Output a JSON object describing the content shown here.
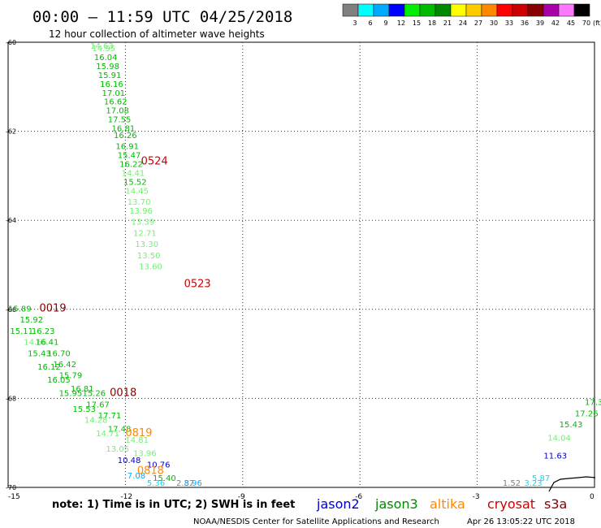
{
  "title": "00:00 — 11:59 UTC 04/25/2018",
  "subtitle": "12 hour collection of altimeter wave heights",
  "legend": {
    "values": [
      "3",
      "6",
      "9",
      "12",
      "15",
      "18",
      "21",
      "24",
      "27",
      "30",
      "33",
      "36",
      "39",
      "42",
      "45",
      "70"
    ],
    "unit": "(ft)",
    "colors": [
      "#808080",
      "#00ffff",
      "#00aaff",
      "#0000ff",
      "#00ee00",
      "#00bb00",
      "#008800",
      "#ffff00",
      "#ffcc00",
      "#ff8800",
      "#ff0000",
      "#cc0000",
      "#880000",
      "#aa00aa",
      "#ff77ff",
      "#000000"
    ]
  },
  "note": "note: 1) Time is in UTC; 2) SWH is in feet",
  "footer": "NOAA/NESDIS Center for Satellite Applications and Research",
  "timestamp": "Apr 26 13:05:22 UTC 2018",
  "chart_data": {
    "type": "scatter",
    "xlim": [
      -15,
      0
    ],
    "ylim": [
      -70,
      -60
    ],
    "x_ticks": [
      "-15",
      "-12",
      "-9",
      "-6",
      "-3",
      "0"
    ],
    "y_ticks": [
      "-60",
      "-62",
      "-64",
      "-66",
      "-68",
      "-70"
    ],
    "grid": true,
    "satellites": [
      {
        "name": "jason2",
        "color": "#0000cc"
      },
      {
        "name": "jason3",
        "color": "#008800"
      },
      {
        "name": "altika",
        "color": "#ff8800"
      },
      {
        "name": "cryosat",
        "color": "#cc0000"
      },
      {
        "name": "s3a",
        "color": "#880000"
      }
    ],
    "time_labels": [
      {
        "text": "0524",
        "x": -11.6,
        "y": -62.75,
        "color": "#cc0000"
      },
      {
        "text": "0523",
        "x": -10.5,
        "y": -65.5,
        "color": "#cc0000"
      },
      {
        "text": "0019",
        "x": -14.2,
        "y": -66.05,
        "color": "#880000"
      },
      {
        "text": "0018",
        "x": -12.4,
        "y": -67.95,
        "color": "#880000"
      },
      {
        "text": "0819",
        "x": -12.0,
        "y": -68.85,
        "color": "#ff8800"
      },
      {
        "text": "0818",
        "x": -11.7,
        "y": -69.7,
        "color": "#ff8800"
      }
    ],
    "points": [
      {
        "v": "14.63",
        "x": -12.9,
        "y": -60.05,
        "c": "#77ee77"
      },
      {
        "v": "14.95",
        "x": -12.85,
        "y": -60.2,
        "c": "#77ee77"
      },
      {
        "v": "16.04",
        "x": -12.8,
        "y": -60.4,
        "c": "#00bb00"
      },
      {
        "v": "15.98",
        "x": -12.75,
        "y": -60.6,
        "c": "#00bb00"
      },
      {
        "v": "15.91",
        "x": -12.7,
        "y": -60.8,
        "c": "#00bb00"
      },
      {
        "v": "16.16",
        "x": -12.65,
        "y": -61.0,
        "c": "#00bb00"
      },
      {
        "v": "17.01",
        "x": -12.6,
        "y": -61.2,
        "c": "#00bb00"
      },
      {
        "v": "16.62",
        "x": -12.55,
        "y": -61.4,
        "c": "#00bb00"
      },
      {
        "v": "17.08",
        "x": -12.5,
        "y": -61.6,
        "c": "#00bb00"
      },
      {
        "v": "17.55",
        "x": -12.45,
        "y": -61.8,
        "c": "#00bb00"
      },
      {
        "v": "16.81",
        "x": -12.35,
        "y": -62.0,
        "c": "#00bb00"
      },
      {
        "v": "16.26",
        "x": -12.3,
        "y": -62.15,
        "c": "#00bb00"
      },
      {
        "v": "16.91",
        "x": -12.25,
        "y": -62.4,
        "c": "#00bb00"
      },
      {
        "v": "15.47",
        "x": -12.2,
        "y": -62.6,
        "c": "#00bb00"
      },
      {
        "v": "16.22",
        "x": -12.15,
        "y": -62.8,
        "c": "#00bb00"
      },
      {
        "v": "14.41",
        "x": -12.1,
        "y": -63.0,
        "c": "#77ee77"
      },
      {
        "v": "15.52",
        "x": -12.05,
        "y": -63.2,
        "c": "#00bb00"
      },
      {
        "v": "14.45",
        "x": -12.0,
        "y": -63.4,
        "c": "#77ee77"
      },
      {
        "v": "13.70",
        "x": -11.95,
        "y": -63.65,
        "c": "#77ee77"
      },
      {
        "v": "13.96",
        "x": -11.9,
        "y": -63.85,
        "c": "#77ee77"
      },
      {
        "v": "13.39",
        "x": -11.85,
        "y": -64.1,
        "c": "#77ee77"
      },
      {
        "v": "12.71",
        "x": -11.8,
        "y": -64.35,
        "c": "#77ee77"
      },
      {
        "v": "13.30",
        "x": -11.75,
        "y": -64.6,
        "c": "#77ee77"
      },
      {
        "v": "13.50",
        "x": -11.7,
        "y": -64.85,
        "c": "#77ee77"
      },
      {
        "v": "13.60",
        "x": -11.65,
        "y": -65.1,
        "c": "#77ee77"
      },
      {
        "v": "15.89",
        "x": -15.15,
        "y": -66.05,
        "c": "#00bb00"
      },
      {
        "v": "15.92",
        "x": -14.7,
        "y": -66.3,
        "c": "#00bb00"
      },
      {
        "v": "15.11",
        "x": -14.95,
        "y": -66.55,
        "c": "#00bb00"
      },
      {
        "v": "16.23",
        "x": -14.4,
        "y": -66.55,
        "c": "#00bb00"
      },
      {
        "v": "14.66",
        "x": -14.6,
        "y": -66.8,
        "c": "#77ee77"
      },
      {
        "v": "16.41",
        "x": -14.3,
        "y": -66.8,
        "c": "#00bb00"
      },
      {
        "v": "15.43",
        "x": -14.5,
        "y": -67.05,
        "c": "#00bb00"
      },
      {
        "v": "16.70",
        "x": -14.0,
        "y": -67.05,
        "c": "#00bb00"
      },
      {
        "v": "16.42",
        "x": -13.85,
        "y": -67.3,
        "c": "#00bb00"
      },
      {
        "v": "16.12",
        "x": -14.25,
        "y": -67.35,
        "c": "#00bb00"
      },
      {
        "v": "15.79",
        "x": -13.7,
        "y": -67.55,
        "c": "#00bb00"
      },
      {
        "v": "16.05",
        "x": -14.0,
        "y": -67.65,
        "c": "#00bb00"
      },
      {
        "v": "16.81",
        "x": -13.4,
        "y": -67.85,
        "c": "#00bb00"
      },
      {
        "v": "15.26",
        "x": -13.1,
        "y": -67.95,
        "c": "#00bb00"
      },
      {
        "v": "15.95",
        "x": -13.7,
        "y": -67.95,
        "c": "#00bb00"
      },
      {
        "v": "17.67",
        "x": -13.0,
        "y": -68.2,
        "c": "#00bb00"
      },
      {
        "v": "15.53",
        "x": -13.35,
        "y": -68.3,
        "c": "#00bb00"
      },
      {
        "v": "17.71",
        "x": -12.7,
        "y": -68.45,
        "c": "#00bb00"
      },
      {
        "v": "14.28",
        "x": -13.05,
        "y": -68.55,
        "c": "#77ee77"
      },
      {
        "v": "17.48",
        "x": -12.45,
        "y": -68.75,
        "c": "#00bb00"
      },
      {
        "v": "14.71",
        "x": -12.75,
        "y": -68.85,
        "c": "#77ee77"
      },
      {
        "v": "14.81",
        "x": -12.0,
        "y": -69.0,
        "c": "#77ee77"
      },
      {
        "v": "13.05",
        "x": -12.5,
        "y": -69.2,
        "c": "#77ee77"
      },
      {
        "v": "13.96",
        "x": -11.8,
        "y": -69.3,
        "c": "#77ee77"
      },
      {
        "v": "10.48",
        "x": -12.2,
        "y": -69.45,
        "c": "#0000cc"
      },
      {
        "v": "10.76",
        "x": -11.45,
        "y": -69.55,
        "c": "#0000cc"
      },
      {
        "v": "7.08",
        "x": -11.95,
        "y": -69.8,
        "c": "#00aaff"
      },
      {
        "v": "15.40",
        "x": -11.3,
        "y": -69.85,
        "c": "#00bb00"
      },
      {
        "v": "5.36",
        "x": -11.45,
        "y": -70.05,
        "c": "#00ddff"
      },
      {
        "v": "2.37",
        "x": -10.7,
        "y": -70.4,
        "c": "#808080"
      },
      {
        "v": "8.96",
        "x": -10.5,
        "y": -70.65,
        "c": "#00aaff"
      },
      {
        "v": "17.3",
        "x": -0.15,
        "y": -68.15,
        "c": "#00bb00"
      },
      {
        "v": "17.26",
        "x": -0.5,
        "y": -68.4,
        "c": "#00bb00"
      },
      {
        "v": "15.43",
        "x": -0.9,
        "y": -68.65,
        "c": "#00bb00"
      },
      {
        "v": "14.04",
        "x": -1.2,
        "y": -68.95,
        "c": "#77ee77"
      },
      {
        "v": "11.63",
        "x": -1.3,
        "y": -69.35,
        "c": "#0000cc"
      },
      {
        "v": "5.87",
        "x": -1.6,
        "y": -69.85,
        "c": "#00ddff"
      },
      {
        "v": "3.23",
        "x": -1.8,
        "y": -70.1,
        "c": "#00ddff"
      },
      {
        "v": "1.52",
        "x": -2.35,
        "y": -70.55,
        "c": "#808080"
      }
    ]
  }
}
